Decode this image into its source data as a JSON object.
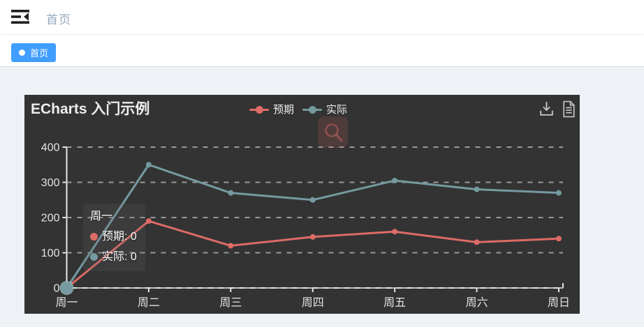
{
  "navbar": {
    "breadcrumb": "首页"
  },
  "tags_bar": {
    "active_tag": "首页"
  },
  "chart": {
    "title": "ECharts 入门示例",
    "background": "#333333",
    "toolbox": {
      "icons": [
        "save-as-image",
        "data-view"
      ]
    },
    "tooltip": {
      "title": "周一",
      "items": [
        {
          "name": "预期",
          "value": 0,
          "label": "预期: 0",
          "color": "#dd6b66"
        },
        {
          "name": "实际",
          "value": 0,
          "label": "实际: 0",
          "color": "#759aa0"
        }
      ]
    }
  },
  "chart_data": {
    "type": "line",
    "title": "ECharts 入门示例",
    "categories": [
      "周一",
      "周二",
      "周三",
      "周四",
      "周五",
      "周六",
      "周日"
    ],
    "series": [
      {
        "name": "预期",
        "color": "#dd6b66",
        "values": [
          0,
          190,
          120,
          145,
          160,
          130,
          140
        ]
      },
      {
        "name": "实际",
        "color": "#759aa0",
        "values": [
          0,
          350,
          270,
          250,
          305,
          280,
          270
        ]
      }
    ],
    "xlabel": "",
    "ylabel": "",
    "ylim": [
      0,
      400
    ],
    "yticks": [
      0,
      100,
      200,
      300,
      400
    ],
    "grid": "horizontal-dashed",
    "legend_position": "top-center",
    "emphasis": {
      "series": 1,
      "index": 0
    },
    "axis_color": "#e6e6e6",
    "grid_color": "#b4b4b4",
    "label_color": "#e3e3e3"
  }
}
